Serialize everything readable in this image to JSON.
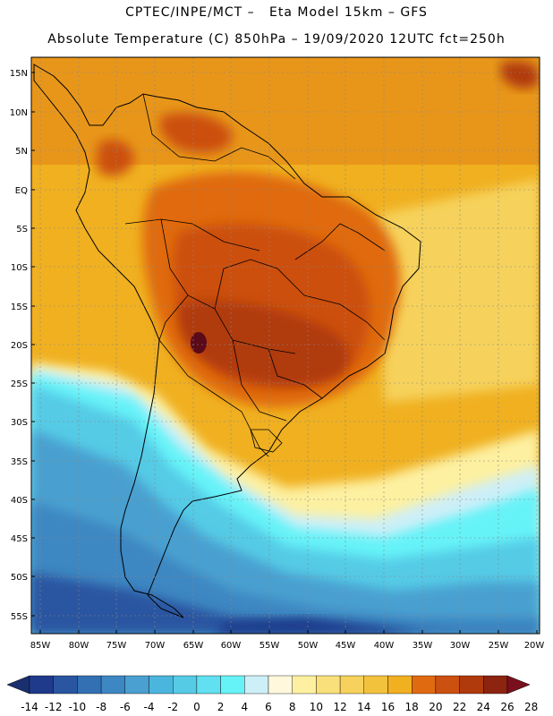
{
  "header": {
    "line1": "CPTEC/INPE/MCT –   Eta Model 15km – GFS",
    "line2": "Absolute Temperature (C) 850hPa – 19/09/2020 12UTC fct=250h"
  },
  "map": {
    "lat_labels": [
      "15N",
      "10N",
      "5N",
      "EQ",
      "5S",
      "10S",
      "15S",
      "20S",
      "25S",
      "30S",
      "35S",
      "40S",
      "45S",
      "50S",
      "55S"
    ],
    "lon_labels": [
      "85W",
      "80W",
      "75W",
      "70W",
      "65W",
      "60W",
      "55W",
      "50W",
      "45W",
      "40W",
      "35W",
      "30W",
      "25W",
      "20W"
    ]
  },
  "colorbar": {
    "labels": [
      "-14",
      "-12",
      "-10",
      "-8",
      "-6",
      "-4",
      "-2",
      "0",
      "2",
      "4",
      "6",
      "8",
      "10",
      "12",
      "14",
      "16",
      "18",
      "20",
      "22",
      "24",
      "26",
      "28"
    ],
    "colors": [
      "#1f3a8a",
      "#2a55a0",
      "#3270b3",
      "#3d87c2",
      "#4aa0d0",
      "#4bb6dd",
      "#55cbe6",
      "#60e0f0",
      "#66f3f8",
      "#cdeff8",
      "#fff8dc",
      "#fdf0a0",
      "#f9e07a",
      "#f6d25c",
      "#f3c23d",
      "#f0b020",
      "#e06a10",
      "#cc5010",
      "#b03a0c",
      "#8c2410"
    ],
    "under_color": "#1a2f70",
    "over_color": "#7a0f1e"
  }
}
